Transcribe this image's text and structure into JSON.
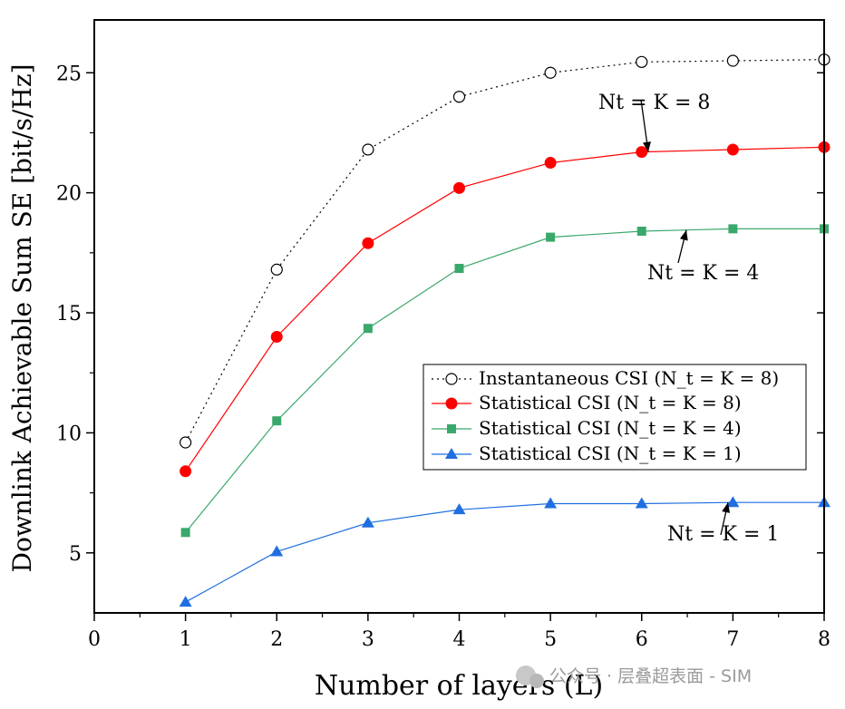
{
  "chart_data": {
    "type": "line",
    "title": "",
    "xlabel": "Number of layers (L)",
    "ylabel": "Downlink Achievable Sum SE [bit/s/Hz]",
    "xlim": [
      0,
      8
    ],
    "ylim": [
      2.5,
      27.2
    ],
    "x_ticks": [
      0,
      1,
      2,
      3,
      4,
      5,
      6,
      7,
      8
    ],
    "x_tick_labels": [
      "0",
      "1",
      "2",
      "3",
      "4",
      "5",
      "6",
      "7",
      "8"
    ],
    "y_ticks": [
      5,
      10,
      15,
      20,
      25
    ],
    "y_tick_labels": [
      "5",
      "10",
      "15",
      "20",
      "25"
    ],
    "x": [
      1,
      2,
      3,
      4,
      5,
      6,
      7,
      8
    ],
    "series": [
      {
        "name": "Instantaneous CSI (Nt = K = 8)",
        "legend_label": "Instantaneous CSI (N_t = K = 8)",
        "color": "#000000",
        "line": "dotted",
        "marker": "open-circle",
        "values": [
          9.6,
          16.8,
          21.8,
          24.0,
          25.0,
          25.45,
          25.5,
          25.55
        ]
      },
      {
        "name": "Statistical CSI (Nt = K = 8)",
        "legend_label": "Statistical CSI (N_t = K = 8)",
        "color": "#ff0000",
        "line": "solid",
        "marker": "circle",
        "values": [
          8.4,
          14.0,
          17.9,
          20.2,
          21.25,
          21.7,
          21.8,
          21.9
        ]
      },
      {
        "name": "Statistical CSI (Nt = K = 4)",
        "legend_label": "Statistical CSI (N_t = K = 4)",
        "color": "#3aa86b",
        "line": "solid",
        "marker": "square",
        "values": [
          5.85,
          10.5,
          14.35,
          16.85,
          18.15,
          18.4,
          18.5,
          18.5
        ]
      },
      {
        "name": "Statistical CSI (Nt = K = 1)",
        "legend_label": "Statistical CSI (N_t = K = 1)",
        "color": "#1f6fe0",
        "line": "solid",
        "marker": "triangle",
        "values": [
          2.95,
          5.05,
          6.25,
          6.8,
          7.05,
          7.05,
          7.1,
          7.1
        ]
      }
    ],
    "annotations": [
      {
        "text": "Nt = K = 8",
        "points_to_series": 1,
        "at_x": 6
      },
      {
        "text": "Nt = K = 4",
        "points_to_series": 2,
        "at_x": 6.5
      },
      {
        "text": "Nt = K = 1",
        "points_to_series": 3,
        "at_x": 7
      }
    ],
    "legend_position": "center-right"
  },
  "watermark": "公众号 · 层叠超表面 - SIM"
}
